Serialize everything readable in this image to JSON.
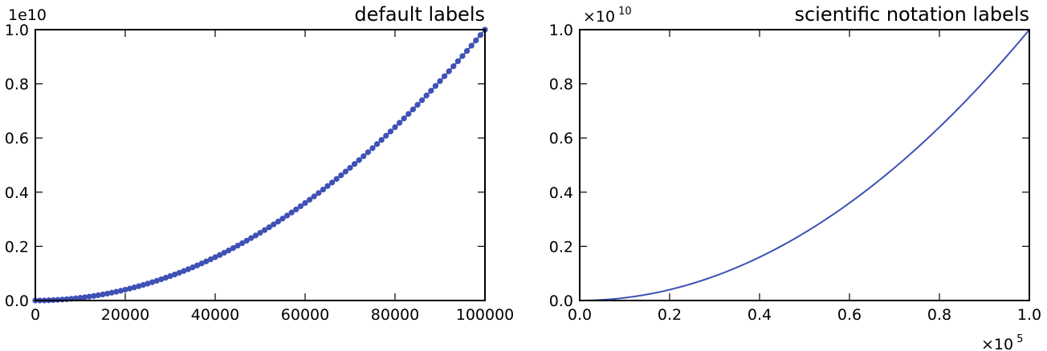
{
  "chart_data": [
    {
      "type": "scatter",
      "title": "default labels",
      "xlabel": "",
      "ylabel": "",
      "xlim": [
        0,
        100000
      ],
      "ylim": [
        0,
        10000000000
      ],
      "x_tick_labels": [
        "0",
        "20000",
        "40000",
        "60000",
        "80000",
        "100000"
      ],
      "x_tick_values": [
        0,
        20000,
        40000,
        60000,
        80000,
        100000
      ],
      "y_tick_labels": [
        "0.0",
        "0.2",
        "0.4",
        "0.6",
        "0.8",
        "1.0"
      ],
      "y_tick_values": [
        0,
        2000000000,
        4000000000,
        6000000000,
        8000000000,
        10000000000
      ],
      "y_offset_label": "1e10",
      "series": [
        {
          "function": "y = x^2",
          "x_start": 0,
          "x_end": 100000,
          "x_step": 1000,
          "color": "#3f51b5",
          "style": "line-with-markers"
        }
      ],
      "grid": false,
      "legend": "none"
    },
    {
      "type": "line",
      "title": "scientific notation labels",
      "xlabel": "",
      "ylabel": "",
      "xlim": [
        0,
        100000
      ],
      "ylim": [
        0,
        10000000000
      ],
      "x_tick_labels": [
        "0.0",
        "0.2",
        "0.4",
        "0.6",
        "0.8",
        "1.0"
      ],
      "x_tick_values": [
        0,
        20000,
        40000,
        60000,
        80000,
        100000
      ],
      "y_tick_labels": [
        "0.0",
        "0.2",
        "0.4",
        "0.6",
        "0.8",
        "1.0"
      ],
      "y_tick_values": [
        0,
        2000000000,
        4000000000,
        6000000000,
        8000000000,
        10000000000
      ],
      "x_offset_label": {
        "base": "×10",
        "exponent": "5"
      },
      "y_offset_label": {
        "base": "×10",
        "exponent": "10"
      },
      "series": [
        {
          "function": "y = x^2",
          "x_start": 0,
          "x_end": 100000,
          "x_step": 1000,
          "color": "#3f51b5",
          "style": "line"
        }
      ],
      "grid": false,
      "legend": "none"
    }
  ]
}
